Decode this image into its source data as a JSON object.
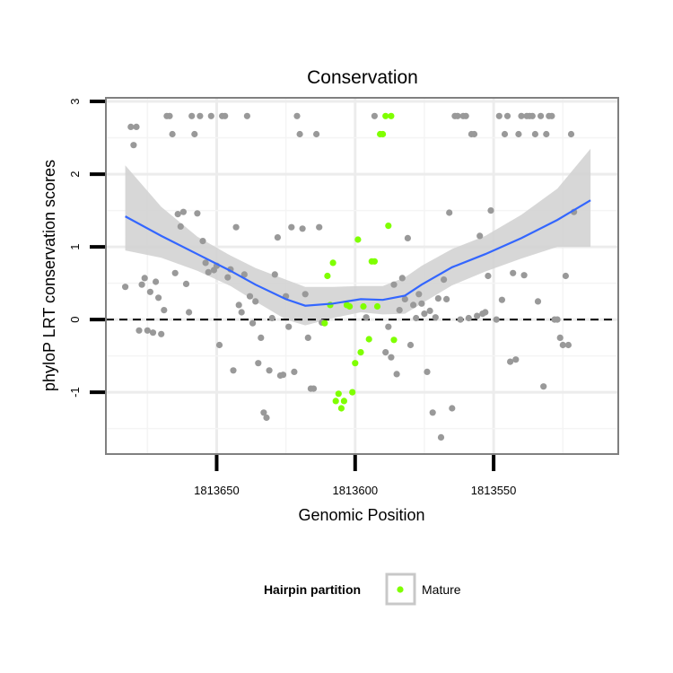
{
  "chart_data": {
    "type": "scatter",
    "title": "Conservation",
    "xlabel": "Genomic Position",
    "ylabel": "phyloP LRT conservation scores",
    "x_reversed": true,
    "xlim": [
      1813690,
      1813505
    ],
    "ylim": [
      -1.85,
      3.05
    ],
    "x_ticks": [
      1813650,
      1813600,
      1813550
    ],
    "x_tick_labels": [
      "1813650",
      "1813600",
      "1813550"
    ],
    "y_ticks": [
      3,
      2,
      1,
      0,
      -1
    ],
    "y_tick_labels": [
      "3",
      "2",
      "1",
      "0",
      "-1"
    ],
    "reference_line": {
      "y": 0,
      "style": "dashed"
    },
    "grid": true,
    "legend": {
      "title": "Hairpin partition",
      "position": "bottom",
      "entries": [
        {
          "label": "Mature",
          "color": "#7fff00"
        }
      ]
    },
    "colors": {
      "other": "#999999",
      "mature": "#7fff00",
      "smooth": "#3366ff",
      "ribbon": "#d3d3d3"
    },
    "series": [
      {
        "name": "",
        "color": "#999999",
        "points": [
          [
            1813683,
            0.45
          ],
          [
            1813681,
            2.65
          ],
          [
            1813680,
            2.4
          ],
          [
            1813679,
            2.65
          ],
          [
            1813678,
            -0.15
          ],
          [
            1813677,
            0.48
          ],
          [
            1813676,
            0.57
          ],
          [
            1813675,
            -0.15
          ],
          [
            1813674,
            0.38
          ],
          [
            1813673,
            -0.18
          ],
          [
            1813672,
            0.52
          ],
          [
            1813671,
            0.3
          ],
          [
            1813670,
            -0.2
          ],
          [
            1813669,
            0.13
          ],
          [
            1813668,
            2.8
          ],
          [
            1813667,
            2.8
          ],
          [
            1813666,
            2.55
          ],
          [
            1813665,
            0.64
          ],
          [
            1813664,
            1.45
          ],
          [
            1813663,
            1.28
          ],
          [
            1813662,
            1.48
          ],
          [
            1813661,
            0.49
          ],
          [
            1813660,
            0.1
          ],
          [
            1813659,
            2.8
          ],
          [
            1813658,
            2.55
          ],
          [
            1813657,
            1.46
          ],
          [
            1813656,
            2.8
          ],
          [
            1813655,
            1.08
          ],
          [
            1813654,
            0.78
          ],
          [
            1813653,
            0.65
          ],
          [
            1813652,
            2.8
          ],
          [
            1813651,
            0.68
          ],
          [
            1813650,
            0.74
          ],
          [
            1813649,
            -0.35
          ],
          [
            1813648,
            2.8
          ],
          [
            1813647,
            2.8
          ],
          [
            1813646,
            0.58
          ],
          [
            1813645,
            0.69
          ],
          [
            1813644,
            -0.7
          ],
          [
            1813643,
            1.27
          ],
          [
            1813642,
            0.2
          ],
          [
            1813641,
            0.1
          ],
          [
            1813640,
            0.62
          ],
          [
            1813639,
            2.8
          ],
          [
            1813638,
            0.32
          ],
          [
            1813637,
            -0.05
          ],
          [
            1813636,
            0.25
          ],
          [
            1813635,
            -0.6
          ],
          [
            1813634,
            -0.25
          ],
          [
            1813633,
            -1.28
          ],
          [
            1813632,
            -1.35
          ],
          [
            1813631,
            -0.7
          ],
          [
            1813630,
            0.02
          ],
          [
            1813629,
            0.62
          ],
          [
            1813628,
            1.13
          ],
          [
            1813627,
            -0.77
          ],
          [
            1813626,
            -0.76
          ],
          [
            1813625,
            0.32
          ],
          [
            1813624,
            -0.1
          ],
          [
            1813623,
            1.27
          ],
          [
            1813622,
            -0.72
          ],
          [
            1813621,
            2.8
          ],
          [
            1813620,
            2.55
          ],
          [
            1813619,
            1.25
          ],
          [
            1813618,
            0.35
          ],
          [
            1813617,
            -0.25
          ],
          [
            1813616,
            -0.95
          ],
          [
            1813615,
            -0.95
          ],
          [
            1813614,
            2.55
          ],
          [
            1813613,
            1.27
          ],
          [
            1813612,
            -0.04
          ],
          [
            1813596,
            0.03
          ],
          [
            1813593,
            2.8
          ],
          [
            1813589,
            -0.45
          ],
          [
            1813588,
            -0.1
          ],
          [
            1813587,
            -0.52
          ],
          [
            1813586,
            0.48
          ],
          [
            1813585,
            -0.75
          ],
          [
            1813584,
            0.13
          ],
          [
            1813583,
            0.57
          ],
          [
            1813582,
            0.28
          ],
          [
            1813581,
            1.12
          ],
          [
            1813580,
            -0.35
          ],
          [
            1813579,
            0.2
          ],
          [
            1813578,
            0.02
          ],
          [
            1813577,
            0.35
          ],
          [
            1813576,
            0.22
          ],
          [
            1813575,
            0.08
          ],
          [
            1813574,
            -0.72
          ],
          [
            1813573,
            0.12
          ],
          [
            1813572,
            -1.28
          ],
          [
            1813571,
            0.03
          ],
          [
            1813570,
            0.29
          ],
          [
            1813569,
            -1.62
          ],
          [
            1813568,
            0.55
          ],
          [
            1813567,
            0.28
          ],
          [
            1813566,
            1.47
          ],
          [
            1813565,
            -1.22
          ],
          [
            1813564,
            2.8
          ],
          [
            1813563,
            2.8
          ],
          [
            1813562,
            0.0
          ],
          [
            1813561,
            2.8
          ],
          [
            1813560,
            2.8
          ],
          [
            1813559,
            0.02
          ],
          [
            1813558,
            2.55
          ],
          [
            1813557,
            2.55
          ],
          [
            1813556,
            0.05
          ],
          [
            1813555,
            1.15
          ],
          [
            1813554,
            0.08
          ],
          [
            1813553,
            0.1
          ],
          [
            1813552,
            0.6
          ],
          [
            1813551,
            1.5
          ],
          [
            1813549,
            0.0
          ],
          [
            1813548,
            2.8
          ],
          [
            1813547,
            0.27
          ],
          [
            1813546,
            2.55
          ],
          [
            1813545,
            2.8
          ],
          [
            1813544,
            -0.58
          ],
          [
            1813543,
            0.64
          ],
          [
            1813542,
            -0.55
          ],
          [
            1813541,
            2.55
          ],
          [
            1813540,
            2.8
          ],
          [
            1813539,
            0.61
          ],
          [
            1813538,
            2.8
          ],
          [
            1813537,
            2.8
          ],
          [
            1813536,
            2.8
          ],
          [
            1813535,
            2.55
          ],
          [
            1813534,
            0.25
          ],
          [
            1813533,
            2.8
          ],
          [
            1813532,
            -0.92
          ],
          [
            1813531,
            2.55
          ],
          [
            1813530,
            2.8
          ],
          [
            1813529,
            2.8
          ],
          [
            1813528,
            0.0
          ],
          [
            1813527,
            0.0
          ],
          [
            1813526,
            -0.25
          ],
          [
            1813525,
            -0.35
          ],
          [
            1813524,
            0.6
          ],
          [
            1813523,
            -0.35
          ],
          [
            1813522,
            2.55
          ],
          [
            1813521,
            1.48
          ]
        ]
      },
      {
        "name": "Mature",
        "color": "#7fff00",
        "points": [
          [
            1813611,
            -0.05
          ],
          [
            1813610,
            0.6
          ],
          [
            1813609,
            0.2
          ],
          [
            1813608,
            0.78
          ],
          [
            1813607,
            -1.12
          ],
          [
            1813606,
            -1.02
          ],
          [
            1813605,
            -1.22
          ],
          [
            1813604,
            -1.12
          ],
          [
            1813603,
            0.2
          ],
          [
            1813602,
            0.18
          ],
          [
            1813601,
            -1.0
          ],
          [
            1813600,
            -0.6
          ],
          [
            1813599,
            1.1
          ],
          [
            1813598,
            -0.45
          ],
          [
            1813597,
            0.18
          ],
          [
            1813595,
            -0.27
          ],
          [
            1813594,
            0.8
          ],
          [
            1813593,
            0.8
          ],
          [
            1813592,
            0.18
          ],
          [
            1813591,
            2.55
          ],
          [
            1813590,
            2.55
          ],
          [
            1813589,
            2.8
          ],
          [
            1813588,
            1.29
          ],
          [
            1813587,
            2.8
          ],
          [
            1813586,
            -0.28
          ]
        ]
      }
    ],
    "smooth": {
      "x": [
        1813683,
        1813670,
        1813657,
        1813645,
        1813636,
        1813625,
        1813618,
        1813608,
        1813598,
        1813590,
        1813582,
        1813576,
        1813565,
        1813553,
        1813540,
        1813527,
        1813515
      ],
      "y": [
        1.42,
        1.15,
        0.9,
        0.67,
        0.48,
        0.28,
        0.19,
        0.22,
        0.28,
        0.27,
        0.33,
        0.48,
        0.72,
        0.9,
        1.12,
        1.37,
        1.64
      ],
      "lower": [
        0.95,
        0.85,
        0.67,
        0.46,
        0.25,
        0.0,
        -0.08,
        0.02,
        0.1,
        0.07,
        0.08,
        0.22,
        0.47,
        0.66,
        0.84,
        1.0,
        1.0
      ],
      "upper": [
        2.12,
        1.55,
        1.14,
        0.88,
        0.71,
        0.55,
        0.45,
        0.45,
        0.46,
        0.46,
        0.58,
        0.74,
        0.97,
        1.15,
        1.44,
        1.8,
        2.35
      ]
    }
  }
}
